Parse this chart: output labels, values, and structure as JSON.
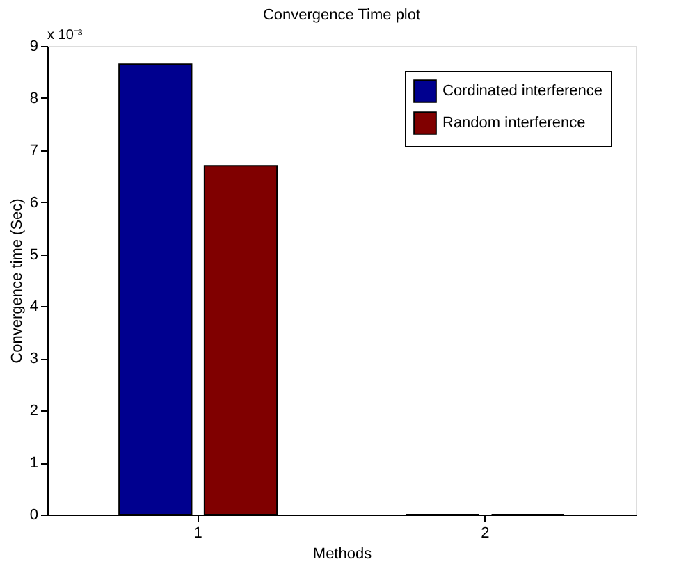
{
  "chart_data": {
    "type": "bar",
    "title": "Convergence Time plot",
    "xlabel": "Methods",
    "ylabel": "Convergence time (Sec)",
    "categories": [
      "1",
      "2"
    ],
    "series": [
      {
        "name": "Cordinated interference",
        "color": "#00008f",
        "values": [
          8.65,
          0
        ]
      },
      {
        "name": "Random interference",
        "color": "#800000",
        "values": [
          6.7,
          0
        ]
      }
    ],
    "ylim": [
      0,
      9
    ],
    "yticks": [
      0,
      1,
      2,
      3,
      4,
      5,
      6,
      7,
      8,
      9
    ],
    "grid": false,
    "legend": "top right",
    "annotations": [
      "x 10⁻³"
    ]
  }
}
